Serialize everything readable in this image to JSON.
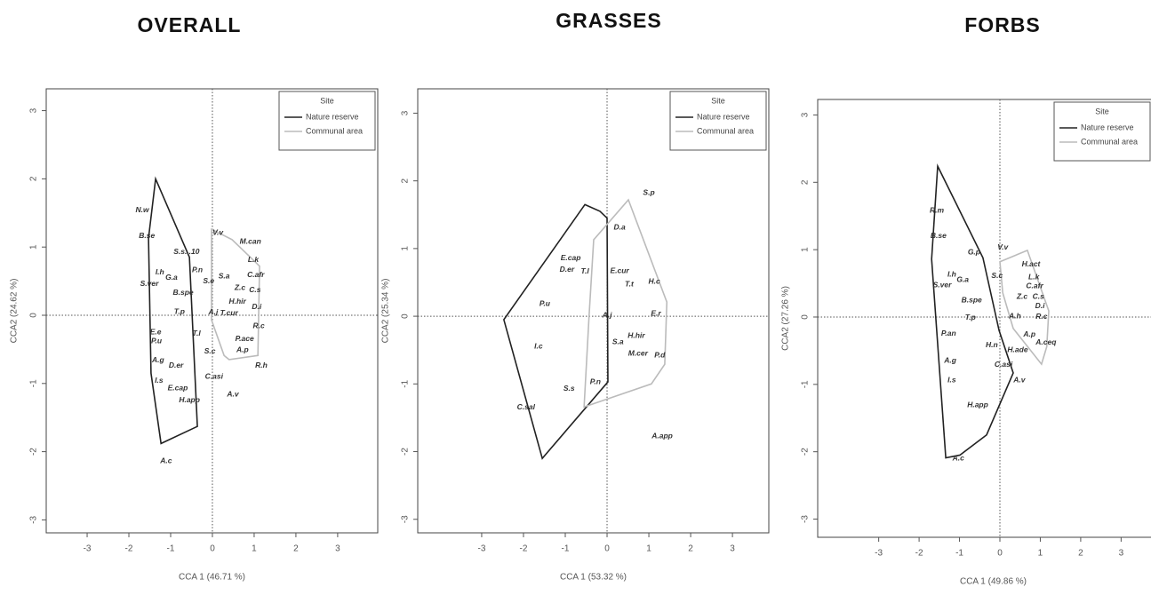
{
  "chart_data": [
    {
      "type": "scatter",
      "title": "OVERALL",
      "xlabel": "CCA 1 (46.71 %)",
      "ylabel": "CCA2 (24.62 %)",
      "xlim": [
        -3.98,
        3.96
      ],
      "ylim": [
        -3.19,
        3.32
      ],
      "xticks": [
        -3,
        -2,
        -1,
        0,
        1,
        2,
        3
      ],
      "yticks": [
        -3,
        -2,
        -1,
        0,
        1,
        2,
        3
      ],
      "legend_title": "Site",
      "legend": "upper right",
      "points": {
        "labels": [
          "N.w",
          "B.se",
          "S.s...10",
          "P.n",
          "I.h",
          "G.a",
          "S.ver",
          "S.e",
          "S.a",
          "B.spe",
          "T.p",
          "A.j",
          "T.cur",
          "V.v",
          "M.can",
          "L.k",
          "C.afr",
          "Z.c",
          "C.s",
          "H.hir",
          "D.i",
          "R.c",
          "P.ace",
          "A.p",
          "R.h",
          "E.e",
          "P.u",
          "T.l",
          "S.c",
          "A.g",
          "D.er",
          "C.asi",
          "I.s",
          "E.cap",
          "A.v",
          "H.app",
          "A.c"
        ],
        "x": [
          -1.68,
          -1.57,
          -0.62,
          -0.36,
          -1.26,
          -0.98,
          -1.51,
          -0.09,
          0.28,
          -0.7,
          -0.79,
          0.02,
          0.4,
          0.13,
          0.91,
          0.98,
          1.04,
          0.66,
          1.02,
          0.6,
          1.06,
          1.11,
          0.77,
          0.72,
          1.17,
          -1.36,
          -1.34,
          -0.38,
          -0.06,
          -1.3,
          -0.87,
          0.04,
          -1.28,
          -0.83,
          0.49,
          -0.55,
          -1.11
        ],
        "y": [
          1.54,
          1.16,
          0.93,
          0.66,
          0.63,
          0.55,
          0.46,
          0.5,
          0.57,
          0.33,
          0.05,
          0.04,
          0.03,
          1.21,
          1.08,
          0.81,
          0.59,
          0.4,
          0.37,
          0.2,
          0.12,
          -0.16,
          -0.35,
          -0.51,
          -0.74,
          -0.25,
          -0.38,
          -0.27,
          -0.53,
          -0.66,
          -0.74,
          -0.9,
          -0.96,
          -1.07,
          -1.16,
          -1.25,
          -2.14
        ]
      },
      "series": [
        {
          "name": "Nature reserve",
          "color": "#222222",
          "x": [
            -1.36,
            -0.55,
            -0.36,
            -1.23,
            -1.47,
            -1.53
          ],
          "y": [
            2.0,
            0.85,
            -1.63,
            -1.88,
            -0.85,
            1.13
          ]
        },
        {
          "name": "Communal area",
          "color": "#bbbbbb",
          "x": [
            -0.02,
            0.47,
            1.13,
            1.09,
            0.4,
            0.28,
            -0.02
          ],
          "y": [
            1.26,
            1.11,
            0.72,
            -0.59,
            -0.65,
            -0.59,
            -0.07
          ]
        }
      ]
    },
    {
      "type": "scatter",
      "title": "GRASSES",
      "xlabel": "CCA 1 (53.32 %)",
      "ylabel": "CCA2 (25.34 %)",
      "xlim": [
        -4.53,
        3.87
      ],
      "ylim": [
        -3.2,
        3.36
      ],
      "xticks": [
        -3,
        -2,
        -1,
        0,
        1,
        2,
        3
      ],
      "yticks": [
        -3,
        -2,
        -1,
        0,
        1,
        2,
        3
      ],
      "legend_title": "Site",
      "legend": "upper right",
      "points": {
        "labels": [
          "S.p",
          "D.a",
          "E.cap",
          "D.er",
          "T.l",
          "E.cur",
          "T.t",
          "H.c",
          "P.u",
          "A.j",
          "E.r",
          "H.hir",
          "S.a",
          "I.c",
          "M.cer",
          "P.d",
          "S.s",
          "P.n",
          "C.sal",
          "A.app"
        ],
        "x": [
          1.0,
          0.3,
          -0.87,
          -0.96,
          -0.53,
          0.3,
          0.53,
          1.13,
          -1.49,
          0,
          1.17,
          0.7,
          0.26,
          -1.64,
          0.74,
          1.26,
          -0.91,
          -0.28,
          -1.94,
          1.32
        ],
        "y": [
          1.82,
          1.31,
          0.86,
          0.69,
          0.66,
          0.67,
          0.47,
          0.51,
          0.18,
          0.01,
          0.04,
          -0.29,
          -0.38,
          -0.45,
          -0.55,
          -0.58,
          -1.07,
          -0.97,
          -1.35,
          -1.77
        ]
      },
      "series": [
        {
          "name": "Nature reserve",
          "color": "#222222",
          "x": [
            -0.53,
            -0.17,
            0,
            0.02,
            -1.55,
            -2.47
          ],
          "y": [
            1.65,
            1.55,
            1.45,
            -0.97,
            -2.1,
            -0.05
          ]
        },
        {
          "name": "Communal area",
          "color": "#bbbbbb",
          "x": [
            0.51,
            1.43,
            1.38,
            1.06,
            -0.55,
            -0.43,
            -0.32
          ],
          "y": [
            1.72,
            0.21,
            -0.71,
            -1.0,
            -1.34,
            0.01,
            1.13
          ]
        }
      ]
    },
    {
      "type": "scatter",
      "title": "FORBS",
      "xlabel": "CCA 1 (49.86 %)",
      "ylabel": "CCA2 (27.26 %)",
      "xlim": [
        -4.51,
        4.07
      ],
      "ylim": [
        -3.27,
        3.23
      ],
      "xticks": [
        -3,
        -2,
        -1,
        0,
        1,
        2,
        3
      ],
      "yticks": [
        -3,
        -2,
        -1,
        0,
        1,
        2,
        3
      ],
      "legend_title": "Site",
      "legend": "upper right",
      "points": {
        "labels": [
          "R.m",
          "B.se",
          "G.p",
          "V.v",
          "H.act",
          "L.k",
          "C.afr",
          "I.h",
          "G.a",
          "S.ver",
          "S.c",
          "Z.c",
          "C.s",
          "D.i",
          "B.spe",
          "R.c",
          "A.h",
          "T.p",
          "A.p",
          "A.ceq",
          "P.an",
          "H.n",
          "H.ade",
          "A.g",
          "C.asi",
          "I.s",
          "A.v",
          "H.app",
          "A.c"
        ],
        "x": [
          -1.56,
          -1.52,
          -0.64,
          0.07,
          0.77,
          0.84,
          0.86,
          -1.19,
          -0.92,
          -1.43,
          -0.07,
          0.55,
          0.95,
          0.99,
          -0.7,
          1.03,
          0.37,
          -0.73,
          0.73,
          1.14,
          -1.27,
          -0.2,
          0.44,
          -1.23,
          0.09,
          -1.19,
          0.48,
          -0.55,
          -1.03
        ],
        "y": [
          1.58,
          1.2,
          0.96,
          1.03,
          0.78,
          0.59,
          0.46,
          0.63,
          0.55,
          0.47,
          0.61,
          0.3,
          0.3,
          0.16,
          0.25,
          0,
          0.01,
          -0.01,
          -0.26,
          -0.38,
          -0.25,
          -0.42,
          -0.49,
          -0.65,
          -0.71,
          -0.94,
          -0.94,
          -1.31,
          -2.1
        ]
      },
      "series": [
        {
          "name": "Nature reserve",
          "color": "#222222",
          "x": [
            -1.54,
            -0.42,
            -0.02,
            0.33,
            -0.33,
            -0.99,
            -1.34,
            -1.69
          ],
          "y": [
            2.24,
            0.88,
            -0.2,
            -0.83,
            -1.75,
            -2.05,
            -2.09,
            0.86
          ]
        },
        {
          "name": "Communal area",
          "color": "#bbbbbb",
          "x": [
            0,
            0.68,
            1.21,
            1.16,
            1.03,
            0.33,
            0.07
          ],
          "y": [
            0.82,
            0.99,
            0.09,
            -0.44,
            -0.7,
            -0.17,
            0.36
          ]
        }
      ]
    }
  ]
}
